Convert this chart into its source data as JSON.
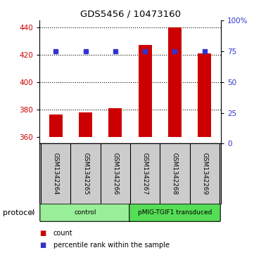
{
  "title": "GDS5456 / 10473160",
  "samples": [
    "GSM1342264",
    "GSM1342265",
    "GSM1342266",
    "GSM1342267",
    "GSM1342268",
    "GSM1342269"
  ],
  "counts": [
    376,
    378,
    381,
    427,
    440,
    421
  ],
  "percentile_ranks": [
    75,
    75,
    75,
    75,
    75,
    75
  ],
  "ylim_left": [
    355,
    445
  ],
  "ylim_right": [
    0,
    100
  ],
  "yticks_left": [
    360,
    380,
    400,
    420,
    440
  ],
  "yticks_right": [
    0,
    25,
    50,
    75,
    100
  ],
  "ytick_labels_right": [
    "0",
    "25",
    "50",
    "75",
    "100%"
  ],
  "hlines": [
    380,
    400,
    420,
    440
  ],
  "bar_color": "#cc0000",
  "dot_color": "#3333cc",
  "bar_width": 0.45,
  "groups": [
    {
      "label": "control",
      "indices": [
        0,
        1,
        2
      ],
      "color": "#99ee99"
    },
    {
      "label": "pMIG-TGIF1 transduced",
      "indices": [
        3,
        4,
        5
      ],
      "color": "#55dd55"
    }
  ],
  "protocol_label": "protocol",
  "legend_count_label": "count",
  "legend_percentile_label": "percentile rank within the sample",
  "left_tick_color": "#cc0000",
  "right_tick_color": "#3333cc",
  "label_area_color": "#cccccc",
  "bar_bottom": 360
}
